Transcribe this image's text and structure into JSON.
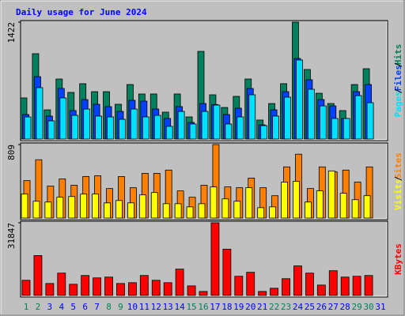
{
  "chart_data": [
    {
      "type": "bar",
      "title": "Daily usage for June 2024",
      "title_color": "#0000ff",
      "ylim": [
        0,
        1422
      ],
      "yticks": [
        1422
      ],
      "series": [
        {
          "name": "Hits",
          "color": "#00805c",
          "values": [
            500,
            1038,
            355,
            730,
            567,
            673,
            576,
            576,
            423,
            663,
            548,
            548,
            327,
            548,
            269,
            1066,
            538,
            384,
            519,
            730,
            231,
            432,
            673,
            1422,
            846,
            557,
            432,
            346,
            663,
            855,
            null
          ]
        },
        {
          "name": "Files",
          "color": "#0040ff",
          "values": [
            298,
            759,
            279,
            615,
            346,
            480,
            423,
            394,
            336,
            471,
            461,
            365,
            250,
            394,
            202,
            432,
            420,
            298,
            375,
            615,
            173,
            355,
            576,
            980,
            721,
            480,
            403,
            250,
            576,
            663,
            null
          ]
        },
        {
          "name": "Pages",
          "color": "#00e0ff",
          "values": [
            269,
            625,
            221,
            500,
            288,
            365,
            279,
            269,
            240,
            365,
            269,
            288,
            154,
            336,
            183,
            336,
            413,
            183,
            269,
            538,
            163,
            279,
            509,
            961,
            605,
            403,
            250,
            250,
            528,
            442,
            null
          ]
        }
      ]
    },
    {
      "type": "bar",
      "ylim": [
        0,
        809
      ],
      "yticks": [
        809
      ],
      "series": [
        {
          "name": "Sites",
          "color": "#ff8000",
          "values": [
            413,
            642,
            352,
            431,
            361,
            457,
            466,
            325,
            457,
            334,
            492,
            492,
            528,
            299,
            229,
            361,
            809,
            343,
            334,
            440,
            334,
            246,
            563,
            703,
            325,
            563,
            510,
            528,
            396,
            563,
            null
          ]
        },
        {
          "name": "Visits",
          "color": "#ffff00",
          "values": [
            264,
            185,
            176,
            229,
            237,
            264,
            264,
            167,
            193,
            167,
            255,
            281,
            158,
            158,
            123,
            158,
            343,
            211,
            185,
            334,
            114,
            123,
            396,
            404,
            176,
            299,
            519,
            273,
            202,
            246,
            null
          ]
        }
      ]
    },
    {
      "type": "bar",
      "ylim": [
        0,
        31847
      ],
      "yticks": [
        31847
      ],
      "categories": [
        "1",
        "2",
        "3",
        "4",
        "5",
        "6",
        "7",
        "8",
        "9",
        "10",
        "11",
        "12",
        "13",
        "14",
        "15",
        "16",
        "17",
        "18",
        "19",
        "20",
        "21",
        "22",
        "23",
        "24",
        "25",
        "26",
        "27",
        "28",
        "29",
        "30",
        "31"
      ],
      "category_colors": [
        "#00805c",
        "#00805c",
        "#0000ff",
        "#0000ff",
        "#0000ff",
        "#0000ff",
        "#0000ff",
        "#00805c",
        "#00805c",
        "#0000ff",
        "#0000ff",
        "#0000ff",
        "#0000ff",
        "#0000ff",
        "#00805c",
        "#00805c",
        "#0000ff",
        "#0000ff",
        "#0000ff",
        "#0000ff",
        "#0000ff",
        "#00805c",
        "#00805c",
        "#0000ff",
        "#0000ff",
        "#0000ff",
        "#0000ff",
        "#0000ff",
        "#00805c",
        "#00805c",
        "#0000ff"
      ],
      "series": [
        {
          "name": "KBytes",
          "color": "#ff0000",
          "values": [
            6649,
            17498,
            5249,
            9799,
            4900,
            8749,
            7699,
            8049,
            5249,
            5600,
            8749,
            6649,
            5600,
            11549,
            4200,
            1750,
            31847,
            20298,
            8399,
            10149,
            1750,
            3150,
            7349,
            12949,
            9799,
            4550,
            10849,
            8049,
            8399,
            8749,
            null
          ]
        }
      ]
    }
  ]
}
